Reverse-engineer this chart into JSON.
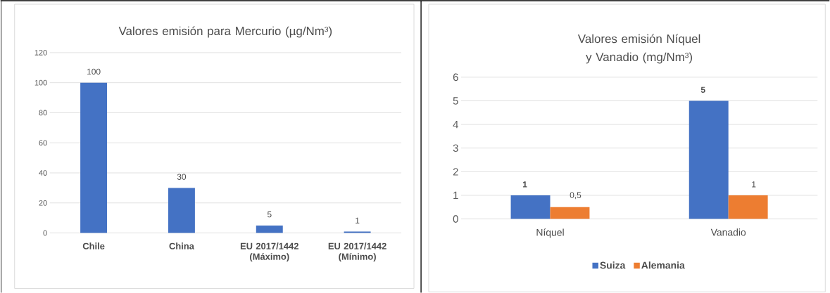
{
  "chart_data": [
    {
      "type": "bar",
      "title": "Valores emisión para Mercurio (µg/Nm³)",
      "categories": [
        "Chile",
        "China",
        "EU 2017/1442 (Máximo)",
        "EU 2017/1442 (Mínimo)"
      ],
      "values": [
        100,
        30,
        5,
        1
      ],
      "color": "#4472c4",
      "ylim": [
        0,
        120
      ],
      "yticks": [
        0,
        20,
        40,
        60,
        80,
        100,
        120
      ],
      "grid": "y",
      "data_labels": true
    },
    {
      "type": "bar",
      "title": "Valores emisión Níquel y Vanadio (mg/Nm³)",
      "categories": [
        "Níquel",
        "Vanadio"
      ],
      "series": [
        {
          "name": "Suiza",
          "color": "#4472c4",
          "values": [
            1,
            5
          ],
          "value_labels": [
            "1",
            "5"
          ]
        },
        {
          "name": "Alemania",
          "color": "#ed7d31",
          "values": [
            0.5,
            1
          ],
          "value_labels": [
            "0,5",
            "1"
          ]
        }
      ],
      "ylim": [
        0,
        6
      ],
      "yticks": [
        0,
        1,
        2,
        3,
        4,
        5,
        6
      ],
      "grid": "y",
      "legend": "bottom"
    }
  ]
}
